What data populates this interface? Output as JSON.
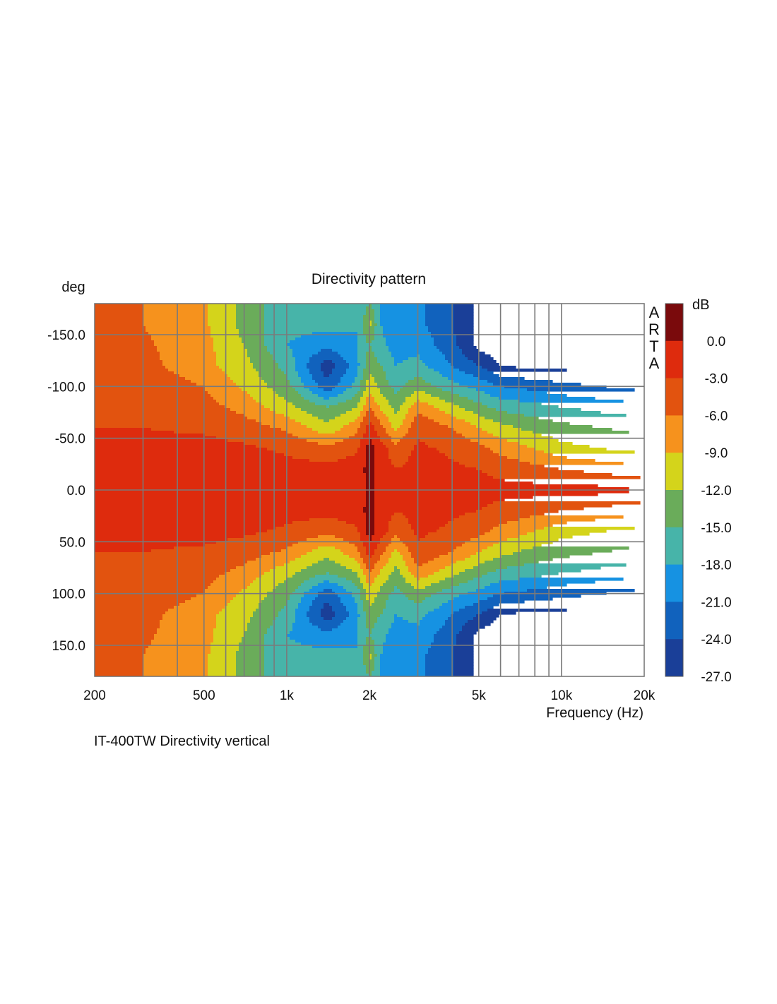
{
  "chart_data": {
    "type": "heatmap",
    "title": "Directivity pattern",
    "xlabel": "Frequency (Hz)",
    "ylabel": "deg",
    "caption": "IT-400TW Directivity vertical",
    "brand": "ARTA",
    "colorbar_label": "dB",
    "x_scale": "log",
    "xlim": [
      200,
      20000
    ],
    "ylim": [
      -180,
      180
    ],
    "x_ticks": [
      {
        "value": 200,
        "label": "200"
      },
      {
        "value": 500,
        "label": "500"
      },
      {
        "value": 1000,
        "label": "1k"
      },
      {
        "value": 2000,
        "label": "2k"
      },
      {
        "value": 5000,
        "label": "5k"
      },
      {
        "value": 10000,
        "label": "10k"
      },
      {
        "value": 20000,
        "label": "20k"
      }
    ],
    "y_ticks": [
      {
        "value": -150,
        "label": "-150.0"
      },
      {
        "value": -100,
        "label": "-100.0"
      },
      {
        "value": -50,
        "label": "-50.0"
      },
      {
        "value": 0,
        "label": "0.0"
      },
      {
        "value": 50,
        "label": "50.0"
      },
      {
        "value": 100,
        "label": "100.0"
      },
      {
        "value": 150,
        "label": "150.0"
      }
    ],
    "colorbar_ticks": [
      "0.0",
      "-3.0",
      "-6.0",
      "-9.0",
      "-12.0",
      "-15.0",
      "-18.0",
      "-21.0",
      "-24.0",
      "-27.0"
    ],
    "color_levels": [
      {
        "range": [
          0,
          3
        ],
        "color": "#7a0a0c"
      },
      {
        "range": [
          -3,
          0
        ],
        "color": "#de2b0d"
      },
      {
        "range": [
          -6,
          -3
        ],
        "color": "#e2530f"
      },
      {
        "range": [
          -9,
          -6
        ],
        "color": "#f6921d"
      },
      {
        "range": [
          -12,
          -9
        ],
        "color": "#d4d41b"
      },
      {
        "range": [
          -15,
          -12
        ],
        "color": "#6aac5a"
      },
      {
        "range": [
          -18,
          -15
        ],
        "color": "#47b4a9"
      },
      {
        "range": [
          -21,
          -18
        ],
        "color": "#1692e2"
      },
      {
        "range": [
          -24,
          -21
        ],
        "color": "#1162bd"
      },
      {
        "range": [
          -27,
          -24
        ],
        "color": "#1a3f98"
      },
      {
        "range": [
          -40,
          -27
        ],
        "color": "#1f2a7e"
      }
    ],
    "grid": true,
    "symmetric_about_zero_deg": true,
    "db_grid": {
      "angles": [
        0,
        20,
        40,
        60,
        80,
        100,
        120,
        140,
        160,
        180
      ],
      "frequencies": [
        200,
        300,
        500,
        700,
        1000,
        1400,
        1800,
        2000,
        2200,
        2500,
        3000,
        4000,
        5000,
        6000,
        8000,
        10000,
        14000,
        20000
      ],
      "values": [
        [
          0,
          0,
          -1,
          -1,
          -1,
          -1,
          -1,
          0.5,
          -1,
          -2,
          -1,
          -2,
          -2,
          -2,
          -2,
          -2,
          -2,
          -3
        ],
        [
          -1,
          -1,
          -1,
          -1.5,
          -2,
          -2,
          -1.5,
          1,
          -1.5,
          -3,
          -2,
          -2.5,
          -3,
          -4,
          -5,
          -6,
          -7,
          -8
        ],
        [
          -2,
          -2,
          -2,
          -2.5,
          -3.5,
          -5,
          -3.5,
          1.5,
          -1.5,
          -5,
          -2.5,
          -3.5,
          -5,
          -7,
          -9,
          -11,
          -12,
          -13
        ],
        [
          -3,
          -3,
          -3.5,
          -4.5,
          -6.5,
          -11,
          -7,
          -1.5,
          -5,
          -10,
          -3.5,
          -6,
          -9,
          -11,
          -13,
          -14,
          -15,
          -16
        ],
        [
          -3.5,
          -3.5,
          -5,
          -7,
          -11,
          -15,
          -12,
          -6,
          -9.5,
          -13,
          -7,
          -11,
          -14,
          -16,
          -17,
          -18,
          -19,
          -20
        ],
        [
          -4,
          -4,
          -6,
          -9.5,
          -14,
          -23,
          -17,
          -10,
          -13,
          -16,
          -13,
          -17,
          -19,
          -21,
          -22,
          -23,
          -24,
          -25
        ],
        [
          -4,
          -5,
          -8,
          -11,
          -16,
          -26,
          -19,
          -13,
          -15,
          -18,
          -17,
          -21,
          -24,
          -27,
          -28,
          -28,
          -28,
          -28
        ],
        [
          -4,
          -5.5,
          -8,
          -12,
          -18,
          -20,
          -18,
          -15,
          -17,
          -19.5,
          -19,
          -23,
          -28,
          -29,
          -30,
          -30,
          -30,
          -30
        ],
        [
          -4.5,
          -6,
          -8.5,
          -13,
          -17,
          -17,
          -18,
          -11,
          -18,
          -21,
          -20,
          -24,
          -28,
          -30,
          -30,
          -30,
          -30,
          -30
        ],
        [
          -4.5,
          -6,
          -8.5,
          -13,
          -17,
          -17,
          -18,
          -15,
          -18,
          -21,
          -20,
          -24,
          -28,
          -30,
          -30,
          -30,
          -30,
          -30
        ]
      ]
    }
  }
}
